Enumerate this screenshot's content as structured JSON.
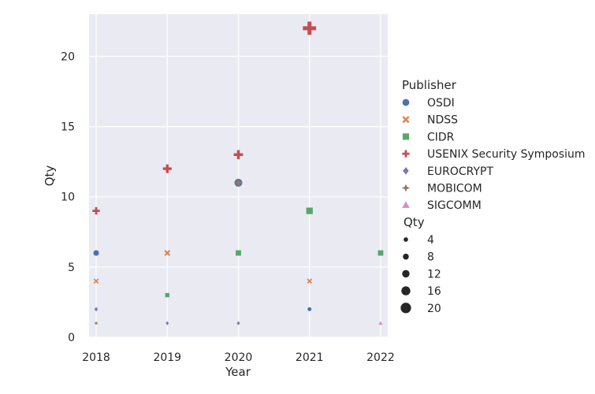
{
  "chart_data": {
    "type": "scatter",
    "xlabel": "Year",
    "ylabel": "Qty",
    "x_ticks": [
      "2018",
      "2019",
      "2020",
      "2021",
      "2022"
    ],
    "y_ticks": [
      0,
      5,
      10,
      15,
      20
    ],
    "xlim": [
      2017.9,
      2022.1
    ],
    "ylim": [
      0,
      23
    ],
    "grid": true,
    "background": "#eaeaf2",
    "legend_placement": "right",
    "hue_title": "Publisher",
    "size_title": "Qty",
    "size_legend": [
      4,
      8,
      12,
      16,
      20
    ],
    "series": [
      {
        "name": "OSDI",
        "color": "#4c72b0",
        "marker": "circle",
        "points": [
          {
            "x": 2018,
            "y": 6
          },
          {
            "x": 2020,
            "y": 11
          },
          {
            "x": 2021,
            "y": 2
          }
        ]
      },
      {
        "name": "NDSS",
        "color": "#dd8452",
        "marker": "x",
        "points": [
          {
            "x": 2018,
            "y": 4
          },
          {
            "x": 2019,
            "y": 6
          },
          {
            "x": 2021,
            "y": 4
          }
        ]
      },
      {
        "name": "CIDR",
        "color": "#55a868",
        "marker": "square",
        "points": [
          {
            "x": 2019,
            "y": 3
          },
          {
            "x": 2020,
            "y": 6
          },
          {
            "x": 2021,
            "y": 9
          },
          {
            "x": 2022,
            "y": 6
          }
        ]
      },
      {
        "name": "USENIX Security Symposium",
        "color": "#c44e52",
        "marker": "plus",
        "points": [
          {
            "x": 2018,
            "y": 9
          },
          {
            "x": 2019,
            "y": 12
          },
          {
            "x": 2020,
            "y": 13
          },
          {
            "x": 2021,
            "y": 22
          }
        ]
      },
      {
        "name": "EUROCRYPT",
        "color": "#8172b3",
        "marker": "diamond",
        "points": [
          {
            "x": 2018,
            "y": 2
          },
          {
            "x": 2019,
            "y": 1
          },
          {
            "x": 2020,
            "y": 1
          }
        ]
      },
      {
        "name": "MOBICOM",
        "color": "#937860",
        "marker": "star",
        "points": [
          {
            "x": 2018,
            "y": 1
          },
          {
            "x": 2020,
            "y": 11
          }
        ]
      },
      {
        "name": "SIGCOMM",
        "color": "#da8bc3",
        "marker": "triangle",
        "points": [
          {
            "x": 2022,
            "y": 1
          }
        ]
      }
    ]
  }
}
